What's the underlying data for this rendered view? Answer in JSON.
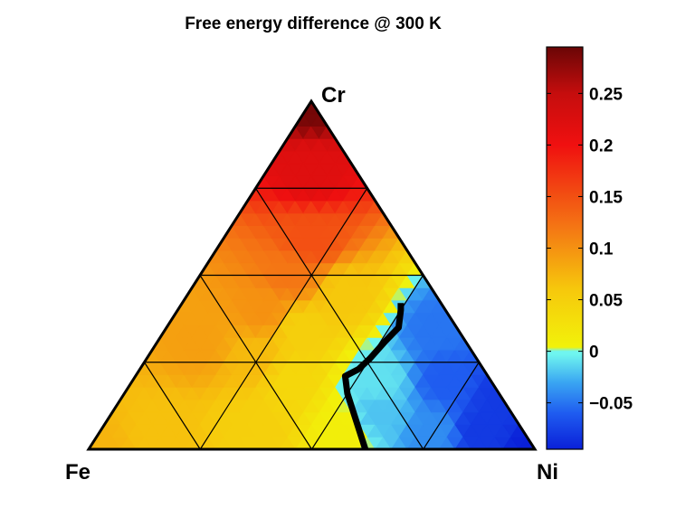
{
  "chart_data": {
    "type": "heatmap",
    "subtype": "ternary-contour",
    "title": "Free energy difference @ 300 K",
    "vertices": {
      "left": "Fe",
      "right": "Ni",
      "top": "Cr"
    },
    "grid_divisions": 4,
    "zero_contour": {
      "value": 0,
      "points_fractions_Fe_Cr_Ni": [
        [
          0.38,
          0.0,
          0.62
        ],
        [
          0.36,
          0.08,
          0.56
        ],
        [
          0.34,
          0.16,
          0.5
        ],
        [
          0.32,
          0.21,
          0.47
        ],
        [
          0.28,
          0.23,
          0.49
        ],
        [
          0.24,
          0.26,
          0.5
        ],
        [
          0.18,
          0.31,
          0.51
        ],
        [
          0.13,
          0.35,
          0.52
        ],
        [
          0.1,
          0.4,
          0.5
        ],
        [
          0.09,
          0.42,
          0.49
        ]
      ]
    },
    "sample_values": [
      {
        "Fe": 0.0,
        "Cr": 1.0,
        "Ni": 0.0,
        "value": 0.29
      },
      {
        "Fe": 0.1,
        "Cr": 0.8,
        "Ni": 0.1,
        "value": 0.22
      },
      {
        "Fe": 0.2,
        "Cr": 0.6,
        "Ni": 0.2,
        "value": 0.15
      },
      {
        "Fe": 0.3,
        "Cr": 0.5,
        "Ni": 0.2,
        "value": 0.12
      },
      {
        "Fe": 0.4,
        "Cr": 0.4,
        "Ni": 0.2,
        "value": 0.1
      },
      {
        "Fe": 0.6,
        "Cr": 0.3,
        "Ni": 0.1,
        "value": 0.09
      },
      {
        "Fe": 0.5,
        "Cr": 0.25,
        "Ni": 0.25,
        "value": 0.07
      },
      {
        "Fe": 1.0,
        "Cr": 0.0,
        "Ni": 0.0,
        "value": 0.075
      },
      {
        "Fe": 0.8,
        "Cr": 0.05,
        "Ni": 0.15,
        "value": 0.065
      },
      {
        "Fe": 0.6,
        "Cr": 0.05,
        "Ni": 0.35,
        "value": 0.05
      },
      {
        "Fe": 0.45,
        "Cr": 0.2,
        "Ni": 0.35,
        "value": 0.04
      },
      {
        "Fe": 0.35,
        "Cr": 0.35,
        "Ni": 0.3,
        "value": 0.05
      },
      {
        "Fe": 0.2,
        "Cr": 0.45,
        "Ni": 0.35,
        "value": 0.06
      },
      {
        "Fe": 0.4,
        "Cr": 0.05,
        "Ni": 0.55,
        "value": 0.01
      },
      {
        "Fe": 0.3,
        "Cr": 0.1,
        "Ni": 0.6,
        "value": -0.02
      },
      {
        "Fe": 0.25,
        "Cr": 0.2,
        "Ni": 0.55,
        "value": -0.01
      },
      {
        "Fe": 0.2,
        "Cr": 0.05,
        "Ni": 0.75,
        "value": -0.04
      },
      {
        "Fe": 0.1,
        "Cr": 0.2,
        "Ni": 0.7,
        "value": -0.06
      },
      {
        "Fe": 0.05,
        "Cr": 0.35,
        "Ni": 0.6,
        "value": -0.05
      },
      {
        "Fe": 0.1,
        "Cr": 0.05,
        "Ni": 0.85,
        "value": -0.08
      },
      {
        "Fe": 0.0,
        "Cr": 0.0,
        "Ni": 1.0,
        "value": -0.095
      },
      {
        "Fe": 0.0,
        "Cr": 0.15,
        "Ni": 0.85,
        "value": -0.08
      }
    ],
    "colorbar": {
      "range": [
        -0.095,
        0.295
      ],
      "ticks": [
        {
          "value": 0.25,
          "label": "0.25"
        },
        {
          "value": 0.2,
          "label": "0.2"
        },
        {
          "value": 0.15,
          "label": "0.15"
        },
        {
          "value": 0.1,
          "label": "0.1"
        },
        {
          "value": 0.05,
          "label": "0.05"
        },
        {
          "value": 0,
          "label": "0"
        },
        {
          "value": -0.05,
          "label": "−0.05"
        }
      ],
      "colormap": "jet-like"
    },
    "colors": {
      "contour_line": "#000000",
      "grid_line": "#000000",
      "low": "#0a20d8",
      "zero": "#6ff5ef",
      "mid": "#f2f20a",
      "high": "#f01010",
      "max": "#6a0606"
    }
  }
}
